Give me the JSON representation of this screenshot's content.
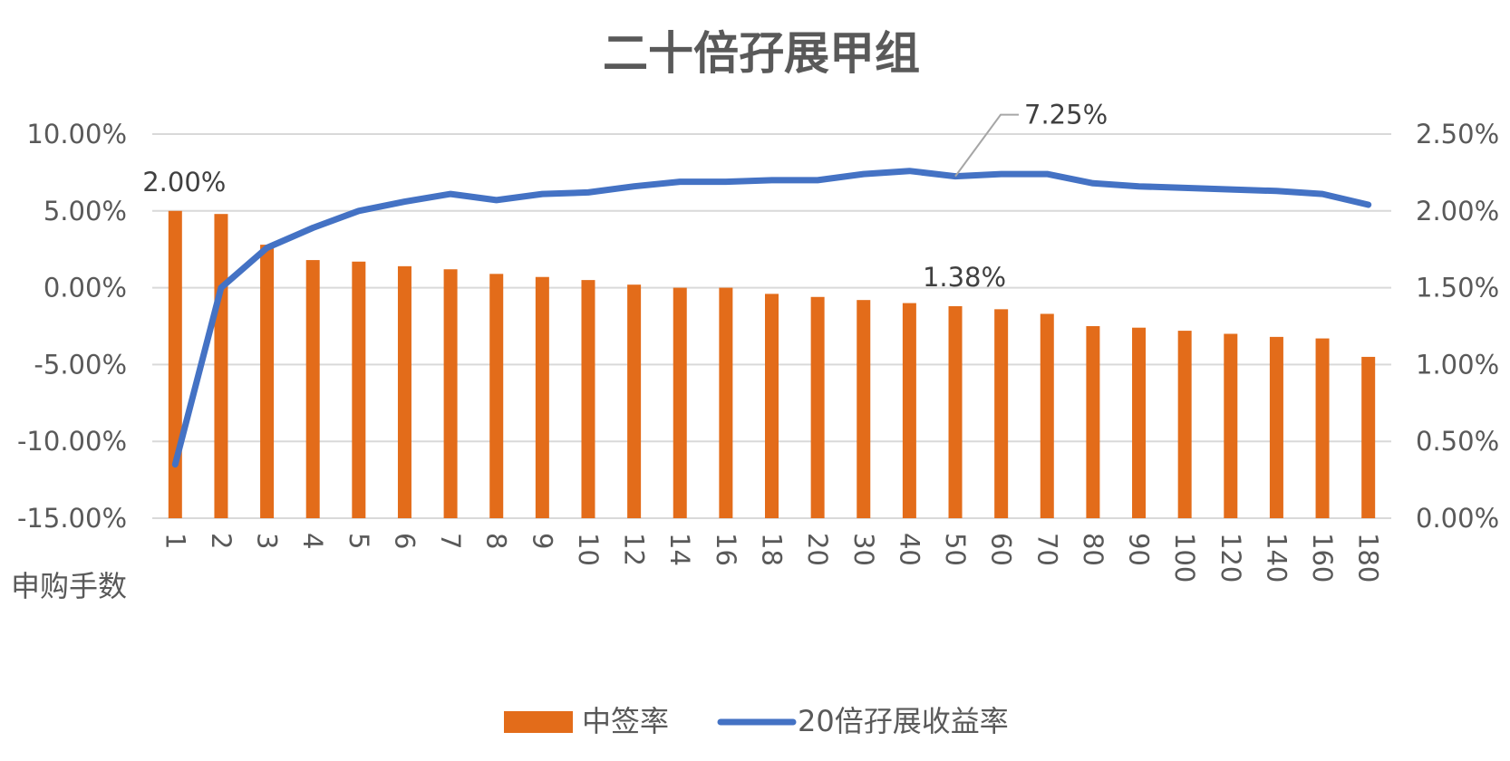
{
  "chart_data": {
    "type": "bar",
    "title": "二十倍孖展甲组",
    "xlabel": "申购手数",
    "ylabel": "",
    "y2label": "",
    "categories": [
      "1",
      "2",
      "3",
      "4",
      "5",
      "6",
      "7",
      "8",
      "9",
      "10",
      "12",
      "14",
      "16",
      "18",
      "20",
      "30",
      "40",
      "50",
      "60",
      "70",
      "80",
      "90",
      "100",
      "120",
      "140",
      "160",
      "180"
    ],
    "ylim": [
      -15,
      10
    ],
    "y2lim": [
      0,
      2.5
    ],
    "yticks": [
      "10.00%",
      "5.00%",
      "0.00%",
      "-5.00%",
      "-10.00%",
      "-15.00%"
    ],
    "y2ticks": [
      "2.50%",
      "2.00%",
      "1.50%",
      "1.00%",
      "0.50%",
      "0.00%"
    ],
    "grid": true,
    "legend_position": "bottom",
    "series": [
      {
        "name": "中签率",
        "type": "bar",
        "axis": "right",
        "color": "#e36c1a",
        "values": [
          2.0,
          1.98,
          1.78,
          1.68,
          1.67,
          1.64,
          1.62,
          1.59,
          1.57,
          1.55,
          1.52,
          1.5,
          1.5,
          1.46,
          1.44,
          1.42,
          1.4,
          1.38,
          1.36,
          1.33,
          1.25,
          1.24,
          1.22,
          1.2,
          1.18,
          1.17,
          1.05
        ]
      },
      {
        "name": "20倍孖展收益率",
        "type": "line",
        "axis": "left",
        "color": "#4472c4",
        "values": [
          -11.5,
          0.0,
          2.6,
          3.9,
          5.0,
          5.6,
          6.1,
          5.7,
          6.1,
          6.2,
          6.6,
          6.9,
          6.9,
          7.0,
          7.0,
          7.4,
          7.6,
          7.25,
          7.4,
          7.4,
          6.8,
          6.6,
          6.5,
          6.4,
          6.3,
          6.1,
          5.4
        ]
      }
    ],
    "annotations": [
      {
        "text": "2.00%",
        "series": "中签率",
        "category": "1"
      },
      {
        "text": "1.38%",
        "series": "中签率",
        "category": "50"
      },
      {
        "text": "7.25%",
        "series": "20倍孖展收益率",
        "category": "50"
      }
    ]
  }
}
